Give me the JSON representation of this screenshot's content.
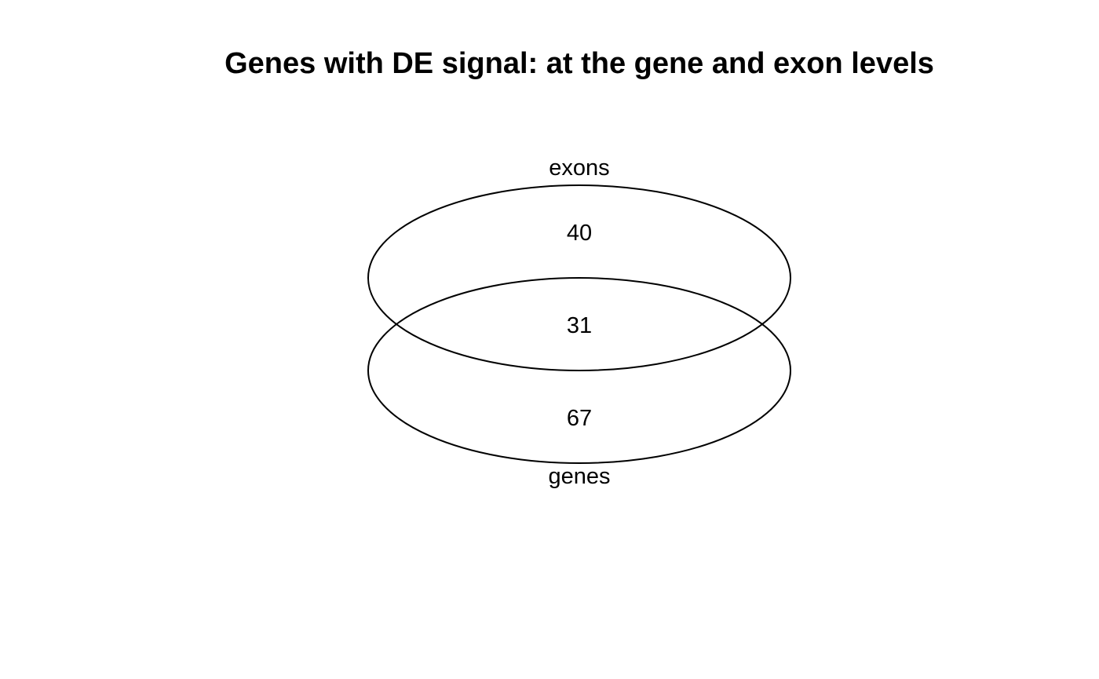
{
  "title": "Genes with DE signal: at the gene and exon levels",
  "sets": [
    {
      "key": "exons",
      "label": "exons"
    },
    {
      "key": "genes",
      "label": "genes"
    }
  ],
  "regions": {
    "exons_only": "40",
    "both": "31",
    "genes_only": "67"
  },
  "chart_data": {
    "type": "venn",
    "title": "Genes with DE signal: at the gene and exon levels",
    "sets": [
      "exons",
      "genes"
    ],
    "counts": {
      "exons_only": 40,
      "exons_and_genes": 31,
      "genes_only": 67
    }
  }
}
